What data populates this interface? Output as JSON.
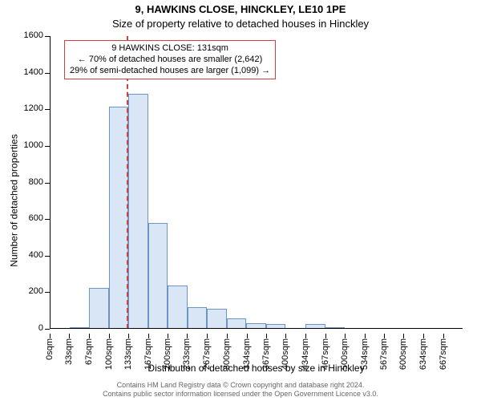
{
  "title_line1": "9, HAWKINS CLOSE, HINCKLEY, LE10 1PE",
  "title_line2": "Size of property relative to detached houses in Hinckley",
  "ylabel": "Number of detached properties",
  "xlabel": "Distribution of detached houses by size in Hinckley",
  "footer_line1": "Contains HM Land Registry data © Crown copyright and database right 2024.",
  "footer_line2": "Contains public sector information licensed under the Open Government Licence v3.0.",
  "chart": {
    "type": "histogram",
    "background_color": "#ffffff",
    "bar_fill": "#d9e6f5",
    "bar_border": "#6c94c7",
    "axis_color": "#000000",
    "ylim": [
      0,
      1600
    ],
    "yticks": [
      0,
      200,
      400,
      600,
      800,
      1000,
      1200,
      1400,
      1600
    ],
    "xlim": [
      0,
      700
    ],
    "xtick_values": [
      0,
      33,
      67,
      100,
      133,
      167,
      200,
      233,
      267,
      300,
      334,
      367,
      400,
      434,
      467,
      500,
      534,
      567,
      600,
      634,
      667
    ],
    "xtick_labels": [
      "0sqm",
      "33sqm",
      "67sqm",
      "100sqm",
      "133sqm",
      "167sqm",
      "200sqm",
      "233sqm",
      "267sqm",
      "300sqm",
      "334sqm",
      "367sqm",
      "400sqm",
      "434sqm",
      "467sqm",
      "500sqm",
      "534sqm",
      "567sqm",
      "600sqm",
      "634sqm",
      "667sqm"
    ],
    "bin_width": 33.35,
    "bars": [
      0,
      10,
      225,
      1215,
      1285,
      580,
      235,
      120,
      110,
      55,
      30,
      25,
      0,
      25,
      10,
      0,
      0,
      0,
      0
    ],
    "xtick_rotation_deg": 90,
    "tick_fontsize": 11
  },
  "marker": {
    "x": 131,
    "color": "#d04040",
    "dash": "dashed"
  },
  "annot": {
    "line1": "9 HAWKINS CLOSE: 131sqm",
    "line2": "← 70% of detached houses are smaller (2,642)",
    "line3": "29% of semi-detached houses are larger (1,099) →",
    "border_color": "#d04040",
    "bg": "#ffffff",
    "fontsize": 11
  }
}
